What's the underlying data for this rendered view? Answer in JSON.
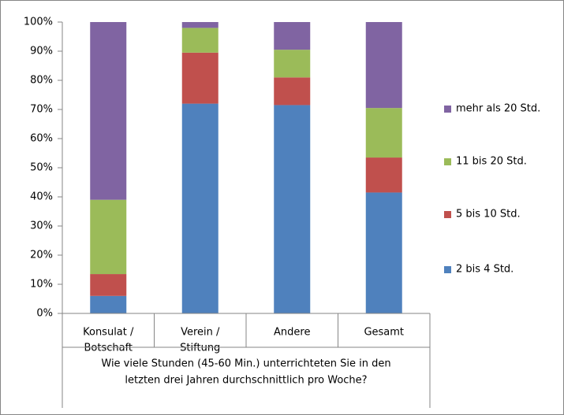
{
  "chart_data": {
    "type": "stacked_bar",
    "categories": [
      [
        "Konsulat /",
        "Botschaft"
      ],
      [
        "Verein /",
        "Stiftung"
      ],
      [
        "Andere"
      ],
      [
        "Gesamt"
      ]
    ],
    "x_label": [
      "Wie viele Stunden (45-60 Min.) unterrichteten Sie in den",
      "letzten drei Jahren durchschnittlich pro Woche?"
    ],
    "series": [
      {
        "name": "2 bis 4 Std.",
        "color": "#4f81bd",
        "values": [
          6,
          72,
          71.5,
          41.5
        ]
      },
      {
        "name": "5 bis 10 Std.",
        "color": "#c0504d",
        "values": [
          7.5,
          17.5,
          9.5,
          12
        ]
      },
      {
        "name": "11 bis 20 Std.",
        "color": "#9bbb59",
        "values": [
          25.5,
          8.5,
          9.5,
          17
        ]
      },
      {
        "name": "mehr als 20 Std.",
        "color": "#8064a2",
        "values": [
          61,
          2,
          9.5,
          29.5
        ]
      }
    ],
    "ylim": [
      0,
      100
    ],
    "yticks": [
      {
        "value": 0,
        "label": "0%"
      },
      {
        "value": 10,
        "label": "10%"
      },
      {
        "value": 20,
        "label": "20%"
      },
      {
        "value": 30,
        "label": "30%"
      },
      {
        "value": 40,
        "label": "40%"
      },
      {
        "value": 50,
        "label": "50%"
      },
      {
        "value": 60,
        "label": "60%"
      },
      {
        "value": 70,
        "label": "70%"
      },
      {
        "value": 80,
        "label": "80%"
      },
      {
        "value": 90,
        "label": "90%"
      },
      {
        "value": 100,
        "label": "100%"
      }
    ],
    "grid": false,
    "legend": "right"
  }
}
